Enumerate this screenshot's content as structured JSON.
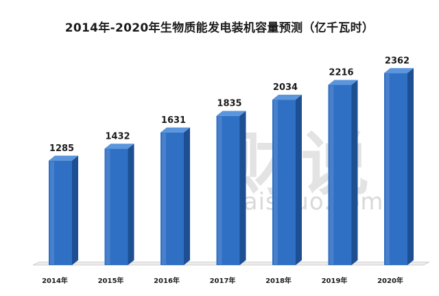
{
  "chart_data": {
    "type": "bar",
    "title": "2014年-2020年生物质能发电装机容量预测（亿千瓦时）",
    "categories": [
      "2014年",
      "2015年",
      "2016年",
      "2017年",
      "2018年",
      "2019年",
      "2020年"
    ],
    "values": [
      1285,
      1432,
      1631,
      1835,
      2034,
      2216,
      2362
    ],
    "xlabel": "",
    "ylabel": "",
    "ylim": [
      0,
      2550
    ],
    "legend": "none",
    "grid": false,
    "bar_color": "#2f6fc4",
    "bar_side_color": "#1d4f92",
    "bar_top_color": "#5b96dc",
    "floor_color": "#d0d0d0"
  },
  "watermark": {
    "brand_cn": "财说",
    "brand_en": "Caishuo.com"
  }
}
